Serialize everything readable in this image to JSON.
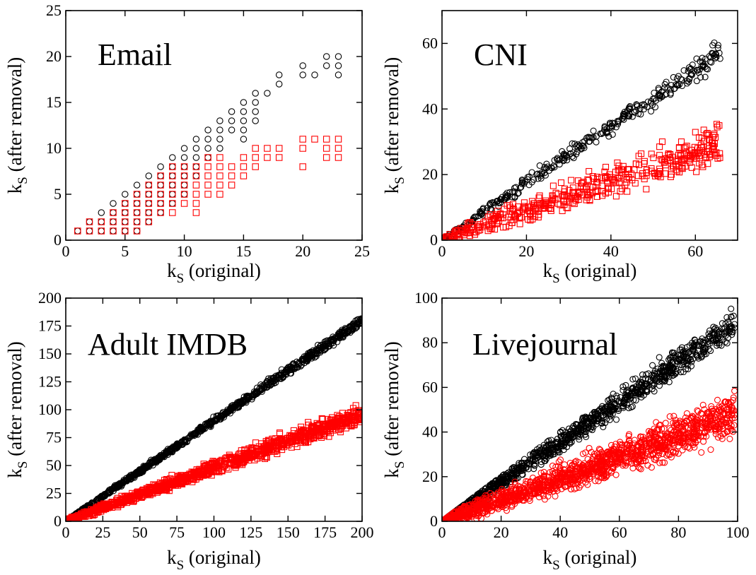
{
  "figure": {
    "description_panels": [
      "Email",
      "CNI",
      "Adult IMDB",
      "Livejournal"
    ]
  },
  "colors": {
    "series_a": "#000000",
    "series_b": "#ff0000"
  },
  "chart_data": [
    {
      "type": "scatter",
      "title": "Email",
      "xlabel": {
        "main": "k",
        "sub": "S",
        "rest": " (original)"
      },
      "ylabel": {
        "main": "k",
        "sub": "S",
        "rest": " (after removal)"
      },
      "xlim": [
        0,
        25
      ],
      "ylim": [
        0,
        25
      ],
      "xticks": [
        0,
        5,
        10,
        15,
        20,
        25
      ],
      "yticks": [
        0,
        5,
        10,
        15,
        20,
        25
      ],
      "grid": false,
      "series": [
        {
          "marker": "circle",
          "color": "#000000",
          "points": [
            [
              1,
              1
            ],
            [
              2,
              1
            ],
            [
              2,
              2
            ],
            [
              3,
              1
            ],
            [
              3,
              2
            ],
            [
              3,
              3
            ],
            [
              4,
              1
            ],
            [
              4,
              2
            ],
            [
              4,
              3
            ],
            [
              4,
              4
            ],
            [
              5,
              1
            ],
            [
              5,
              2
            ],
            [
              5,
              3
            ],
            [
              5,
              4
            ],
            [
              5,
              5
            ],
            [
              6,
              1
            ],
            [
              6,
              2
            ],
            [
              6,
              3
            ],
            [
              6,
              4
            ],
            [
              6,
              5
            ],
            [
              6,
              6
            ],
            [
              7,
              2
            ],
            [
              7,
              3
            ],
            [
              7,
              4
            ],
            [
              7,
              5
            ],
            [
              7,
              6
            ],
            [
              7,
              7
            ],
            [
              8,
              3
            ],
            [
              8,
              4
            ],
            [
              8,
              5
            ],
            [
              8,
              6
            ],
            [
              8,
              7
            ],
            [
              8,
              8
            ],
            [
              9,
              4
            ],
            [
              9,
              5
            ],
            [
              9,
              6
            ],
            [
              9,
              7
            ],
            [
              9,
              8
            ],
            [
              9,
              9
            ],
            [
              10,
              5
            ],
            [
              10,
              6
            ],
            [
              10,
              7
            ],
            [
              10,
              8
            ],
            [
              10,
              9
            ],
            [
              10,
              10
            ],
            [
              11,
              7
            ],
            [
              11,
              8
            ],
            [
              11,
              9
            ],
            [
              11,
              10
            ],
            [
              11,
              11
            ],
            [
              12,
              9
            ],
            [
              12,
              10
            ],
            [
              12,
              11
            ],
            [
              12,
              12
            ],
            [
              13,
              10
            ],
            [
              13,
              11
            ],
            [
              13,
              12
            ],
            [
              13,
              13
            ],
            [
              14,
              12
            ],
            [
              14,
              13
            ],
            [
              14,
              14
            ],
            [
              15,
              11
            ],
            [
              15,
              12
            ],
            [
              15,
              13
            ],
            [
              15,
              14
            ],
            [
              15,
              15
            ],
            [
              16,
              13
            ],
            [
              16,
              14
            ],
            [
              16,
              15
            ],
            [
              16,
              16
            ],
            [
              17,
              16
            ],
            [
              18,
              17
            ],
            [
              18,
              18
            ],
            [
              20,
              18
            ],
            [
              20,
              19
            ],
            [
              21,
              18
            ],
            [
              22,
              19
            ],
            [
              22,
              20
            ],
            [
              23,
              18
            ],
            [
              23,
              19
            ],
            [
              23,
              20
            ]
          ]
        },
        {
          "marker": "square",
          "color": "#ff0000",
          "points": [
            [
              1,
              1
            ],
            [
              2,
              1
            ],
            [
              2,
              2
            ],
            [
              3,
              1
            ],
            [
              3,
              2
            ],
            [
              4,
              1
            ],
            [
              4,
              2
            ],
            [
              4,
              3
            ],
            [
              5,
              1
            ],
            [
              5,
              2
            ],
            [
              5,
              3
            ],
            [
              5,
              4
            ],
            [
              6,
              1
            ],
            [
              6,
              2
            ],
            [
              6,
              3
            ],
            [
              6,
              4
            ],
            [
              6,
              5
            ],
            [
              7,
              2
            ],
            [
              7,
              3
            ],
            [
              7,
              4
            ],
            [
              7,
              5
            ],
            [
              7,
              6
            ],
            [
              8,
              3
            ],
            [
              8,
              4
            ],
            [
              8,
              5
            ],
            [
              8,
              6
            ],
            [
              8,
              7
            ],
            [
              9,
              3
            ],
            [
              9,
              4
            ],
            [
              9,
              5
            ],
            [
              9,
              6
            ],
            [
              9,
              7
            ],
            [
              9,
              8
            ],
            [
              10,
              4
            ],
            [
              10,
              5
            ],
            [
              10,
              6
            ],
            [
              10,
              7
            ],
            [
              10,
              8
            ],
            [
              11,
              3
            ],
            [
              11,
              4
            ],
            [
              11,
              5
            ],
            [
              11,
              6
            ],
            [
              11,
              7
            ],
            [
              11,
              8
            ],
            [
              12,
              5
            ],
            [
              12,
              6
            ],
            [
              12,
              7
            ],
            [
              12,
              8
            ],
            [
              12,
              9
            ],
            [
              13,
              5
            ],
            [
              13,
              6
            ],
            [
              13,
              7
            ],
            [
              13,
              8
            ],
            [
              13,
              9
            ],
            [
              14,
              6
            ],
            [
              14,
              7
            ],
            [
              14,
              8
            ],
            [
              15,
              7
            ],
            [
              15,
              8
            ],
            [
              15,
              9
            ],
            [
              16,
              8
            ],
            [
              16,
              9
            ],
            [
              16,
              10
            ],
            [
              17,
              9
            ],
            [
              17,
              10
            ],
            [
              18,
              9
            ],
            [
              18,
              10
            ],
            [
              20,
              8
            ],
            [
              20,
              10
            ],
            [
              20,
              11
            ],
            [
              21,
              11
            ],
            [
              22,
              9
            ],
            [
              22,
              10
            ],
            [
              22,
              11
            ],
            [
              23,
              9
            ],
            [
              23,
              10
            ],
            [
              23,
              11
            ]
          ]
        }
      ]
    },
    {
      "type": "scatter",
      "title": "CNI",
      "xlabel": {
        "main": "k",
        "sub": "S",
        "rest": " (original)"
      },
      "ylabel": {
        "main": "k",
        "sub": "S",
        "rest": " (after removal)"
      },
      "xlim": [
        0,
        70
      ],
      "ylim": [
        0,
        70
      ],
      "xticks": [
        0,
        20,
        40,
        60
      ],
      "yticks": [
        0,
        20,
        40,
        60
      ],
      "grid": false,
      "series": [
        {
          "marker": "circle",
          "color": "#000000",
          "trend": {
            "x": [
              0,
              66
            ],
            "slope": 0.87,
            "spread": 2.5,
            "count": 330
          }
        },
        {
          "marker": "square",
          "color": "#ff0000",
          "trend": {
            "x": [
              0,
              66
            ],
            "slope": 0.45,
            "spread": 4.5,
            "count": 460
          }
        }
      ]
    },
    {
      "type": "scatter",
      "title": "Adult IMDB",
      "xlabel": {
        "main": "k",
        "sub": "S",
        "rest": " (original)"
      },
      "ylabel": {
        "main": "k",
        "sub": "S",
        "rest": " (after removal)"
      },
      "xlim": [
        0,
        200
      ],
      "ylim": [
        0,
        200
      ],
      "xticks": [
        0,
        25,
        50,
        75,
        100,
        125,
        150,
        175,
        200
      ],
      "yticks": [
        0,
        25,
        50,
        75,
        100,
        125,
        150,
        175,
        200
      ],
      "grid": false,
      "series": [
        {
          "marker": "circle",
          "color": "#000000",
          "trend": {
            "x": [
              0,
              200
            ],
            "slope": 0.9,
            "spread": 3,
            "count": 900
          }
        },
        {
          "marker": "square",
          "color": "#ff0000",
          "trend": {
            "x": [
              0,
              200
            ],
            "slope": 0.48,
            "spread": 6,
            "count": 1100
          }
        }
      ]
    },
    {
      "type": "scatter",
      "title": "Livejournal",
      "xlabel": {
        "main": "k",
        "sub": "S",
        "rest": " (original)"
      },
      "ylabel": {
        "main": "k",
        "sub": "S",
        "rest": " (after removal)"
      },
      "xlim": [
        0,
        100
      ],
      "ylim": [
        0,
        100
      ],
      "xticks": [
        0,
        20,
        40,
        60,
        80,
        100
      ],
      "yticks": [
        0,
        20,
        40,
        60,
        80,
        100
      ],
      "grid": false,
      "series": [
        {
          "marker": "circle",
          "color": "#000000",
          "trend": {
            "x": [
              0,
              99
            ],
            "slope": 0.89,
            "spread": 5,
            "count": 1000
          }
        },
        {
          "marker": "circle",
          "color": "#ff0000",
          "trend": {
            "x": [
              0,
              99
            ],
            "slope": 0.48,
            "spread": 7,
            "count": 1500
          }
        }
      ]
    }
  ]
}
